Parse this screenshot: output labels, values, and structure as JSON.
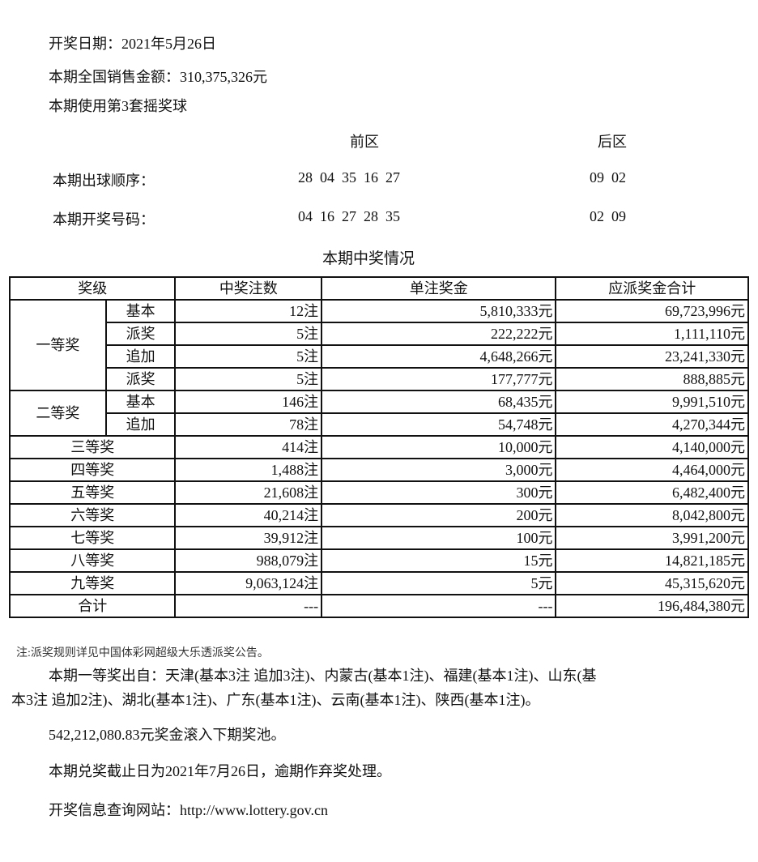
{
  "header": {
    "draw_date": "开奖日期：2021年5月26日",
    "sales": "本期全国销售金额：310,375,326元",
    "ball_set": "本期使用第3套摇奖球"
  },
  "numbers": {
    "front_label": "前区",
    "back_label": "后区",
    "rows": [
      {
        "label": "本期出球顺序：",
        "front": "28  04  35  16  27",
        "back": "09  02"
      },
      {
        "label": "本期开奖号码：",
        "front": "04  16  27  28  35",
        "back": "02  09"
      }
    ]
  },
  "table": {
    "title": "本期中奖情况",
    "headers": [
      "奖级",
      "中奖注数",
      "单注奖金",
      "应派奖金合计"
    ],
    "first": {
      "label": "一等奖",
      "rows": [
        {
          "sub": "基本",
          "count": "12注",
          "unit": "5,810,333元",
          "total": "69,723,996元"
        },
        {
          "sub": "派奖",
          "count": "5注",
          "unit": "222,222元",
          "total": "1,111,110元"
        },
        {
          "sub": "追加",
          "count": "5注",
          "unit": "4,648,266元",
          "total": "23,241,330元"
        },
        {
          "sub": "派奖",
          "count": "5注",
          "unit": "177,777元",
          "total": "888,885元"
        }
      ]
    },
    "second": {
      "label": "二等奖",
      "rows": [
        {
          "sub": "基本",
          "count": "146注",
          "unit": "68,435元",
          "total": "9,991,510元"
        },
        {
          "sub": "追加",
          "count": "78注",
          "unit": "54,748元",
          "total": "4,270,344元"
        }
      ]
    },
    "rows": [
      {
        "level": "三等奖",
        "count": "414注",
        "unit": "10,000元",
        "total": "4,140,000元"
      },
      {
        "level": "四等奖",
        "count": "1,488注",
        "unit": "3,000元",
        "total": "4,464,000元"
      },
      {
        "level": "五等奖",
        "count": "21,608注",
        "unit": "300元",
        "total": "6,482,400元"
      },
      {
        "level": "六等奖",
        "count": "40,214注",
        "unit": "200元",
        "total": "8,042,800元"
      },
      {
        "level": "七等奖",
        "count": "39,912注",
        "unit": "100元",
        "total": "3,991,200元"
      },
      {
        "level": "八等奖",
        "count": "988,079注",
        "unit": "15元",
        "total": "14,821,185元"
      },
      {
        "level": "九等奖",
        "count": "9,063,124注",
        "unit": "5元",
        "total": "45,315,620元"
      },
      {
        "level": "合计",
        "count": "---",
        "unit": "---",
        "total": "196,484,380元"
      }
    ]
  },
  "footer": {
    "note": "注:派奖规则详见中国体彩网超级大乐透派奖公告。",
    "winners_line1": "本期一等奖出自：天津(基本3注 追加3注)、内蒙古(基本1注)、福建(基本1注)、山东(基",
    "winners_line2": "本3注 追加2注)、湖北(基本1注)、广东(基本1注)、云南(基本1注)、陕西(基本1注)。",
    "pool": "542,212,080.83元奖金滚入下期奖池。",
    "deadline": "本期兑奖截止日为2021年7月26日，逾期作弃奖处理。",
    "website": "开奖信息查询网站：http://www.lottery.gov.cn"
  }
}
